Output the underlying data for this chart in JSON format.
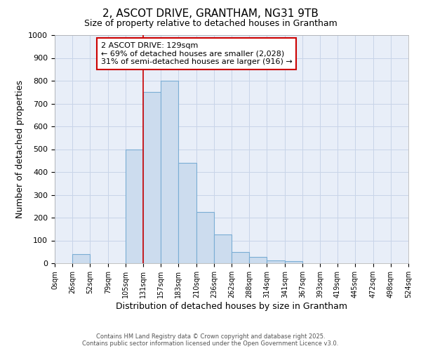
{
  "title": "2, ASCOT DRIVE, GRANTHAM, NG31 9TB",
  "subtitle": "Size of property relative to detached houses in Grantham",
  "xlabel": "Distribution of detached houses by size in Grantham",
  "ylabel": "Number of detached properties",
  "bar_color": "#ccdcee",
  "bar_edge_color": "#7aadd4",
  "bin_edges": [
    0,
    26,
    52,
    79,
    105,
    131,
    157,
    183,
    210,
    236,
    262,
    288,
    314,
    341,
    367,
    393,
    419,
    445,
    472,
    498,
    524
  ],
  "bin_labels": [
    "0sqm",
    "26sqm",
    "52sqm",
    "79sqm",
    "105sqm",
    "131sqm",
    "157sqm",
    "183sqm",
    "210sqm",
    "236sqm",
    "262sqm",
    "288sqm",
    "314sqm",
    "341sqm",
    "367sqm",
    "393sqm",
    "419sqm",
    "445sqm",
    "472sqm",
    "498sqm",
    "524sqm"
  ],
  "values": [
    0,
    40,
    0,
    0,
    500,
    750,
    800,
    440,
    225,
    125,
    50,
    28,
    12,
    10,
    0,
    0,
    0,
    0,
    0,
    0,
    0
  ],
  "red_line_x": 131,
  "ann_line1": "2 ASCOT DRIVE: 129sqm",
  "ann_line2": "← 69% of detached houses are smaller (2,028)",
  "ann_line3": "31% of semi-detached houses are larger (916) →",
  "ylim": [
    0,
    1000
  ],
  "yticks": [
    0,
    100,
    200,
    300,
    400,
    500,
    600,
    700,
    800,
    900,
    1000
  ],
  "xlim": [
    0,
    524
  ],
  "grid_color": "#c8d4e8",
  "background_color": "#e8eef8",
  "footer_line1": "Contains HM Land Registry data © Crown copyright and database right 2025.",
  "footer_line2": "Contains public sector information licensed under the Open Government Licence v3.0."
}
